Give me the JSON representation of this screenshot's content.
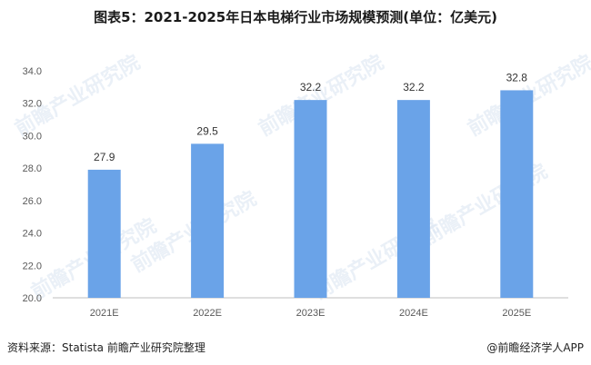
{
  "page": {
    "title": "图表5：2021-2025年日本电梯行业市场规模预测(单位：亿美元)",
    "source": "资料来源：Statista 前瞻产业研究院整理",
    "brand": "@前瞻经济学人APP",
    "watermark_text": "前瞻产业研究院"
  },
  "colors": {
    "bar": "#6aa3e8",
    "axis": "#bfbfbf",
    "watermark": "#d9e4f2"
  },
  "chart_data": {
    "type": "bar",
    "categories": [
      "2021E",
      "2022E",
      "2023E",
      "2024E",
      "2025E"
    ],
    "values": [
      27.9,
      29.5,
      32.2,
      32.2,
      32.8
    ],
    "title": "图表5：2021-2025年日本电梯行业市场规模预测(单位：亿美元)",
    "xlabel": "",
    "ylabel": "",
    "ylim": [
      20.0,
      34.0
    ],
    "yticks": [
      "20.0",
      "22.0",
      "24.0",
      "26.0",
      "28.0",
      "30.0",
      "32.0",
      "34.0"
    ],
    "grid": false,
    "legend": "none"
  }
}
